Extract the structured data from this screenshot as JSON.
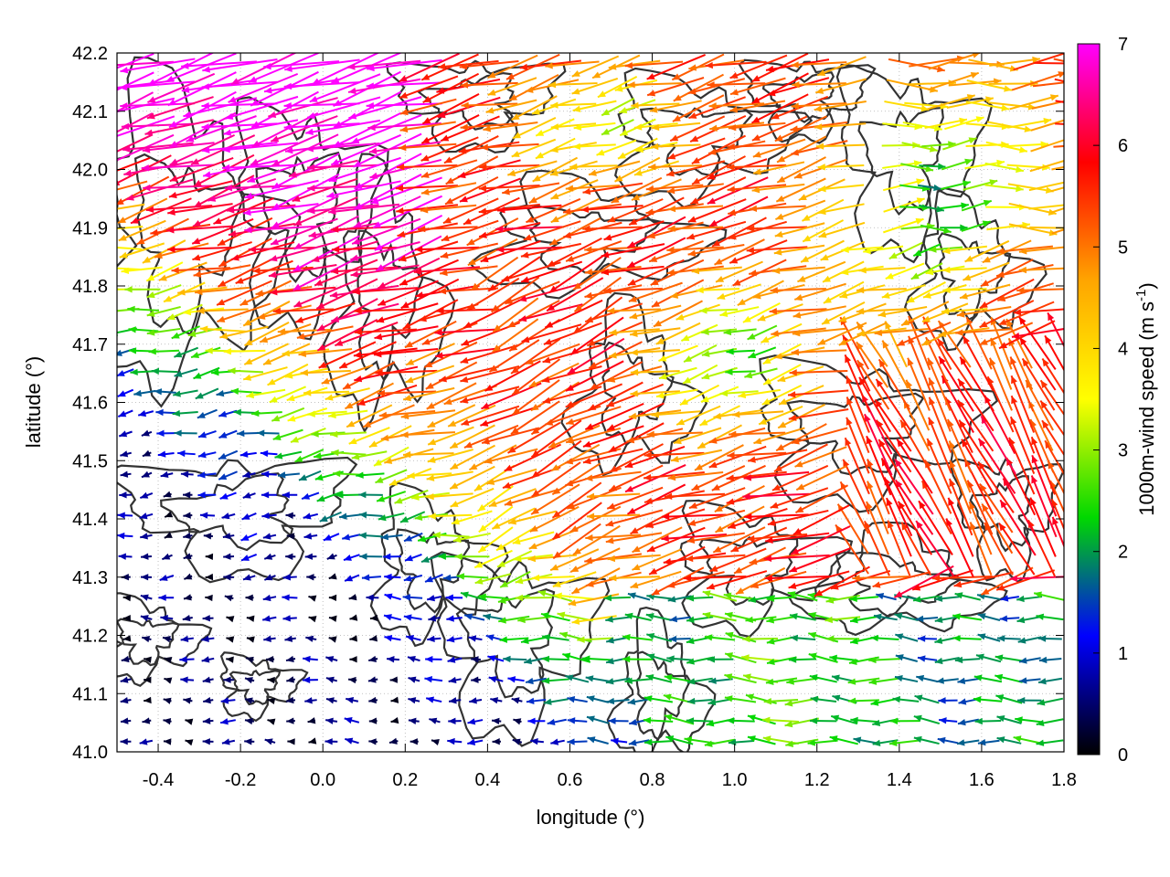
{
  "chart_data": {
    "type": "vector-field",
    "xlabel": "longitude (°)",
    "ylabel": "latitude (°)",
    "xlim": [
      -0.5,
      1.8
    ],
    "ylim": [
      41.0,
      42.2
    ],
    "x_ticks": [
      "-0.4",
      "-0.2",
      "0.0",
      "0.2",
      "0.4",
      "0.6",
      "0.8",
      "1.0",
      "1.2",
      "1.4",
      "1.6",
      "1.8"
    ],
    "x_tick_values": [
      -0.4,
      -0.2,
      0.0,
      0.2,
      0.4,
      0.6,
      0.8,
      1.0,
      1.2,
      1.4,
      1.6,
      1.8
    ],
    "y_ticks": [
      "41.0",
      "41.1",
      "41.2",
      "41.3",
      "41.4",
      "41.5",
      "41.6",
      "41.7",
      "41.8",
      "41.9",
      "42.0",
      "42.1",
      "42.2"
    ],
    "y_tick_values": [
      41.0,
      41.1,
      41.2,
      41.3,
      41.4,
      41.5,
      41.6,
      41.7,
      41.8,
      41.9,
      42.0,
      42.1,
      42.2
    ],
    "grid": "dotted",
    "contours": "terrain elevation isolines (dark gray)",
    "colorbar": {
      "label_main": "1000m-wind speed (m s",
      "label_sup": "-1",
      "label_end": ")",
      "range": [
        0,
        7
      ],
      "ticks": [
        "0",
        "1",
        "2",
        "3",
        "4",
        "5",
        "6",
        "7"
      ],
      "tick_values": [
        0,
        1,
        2,
        3,
        4,
        5,
        6,
        7
      ],
      "colors": [
        "#000000",
        "#0000ff",
        "#00d800",
        "#ffff00",
        "#ffa500",
        "#ff0000",
        "#ff00ff"
      ]
    }
  }
}
